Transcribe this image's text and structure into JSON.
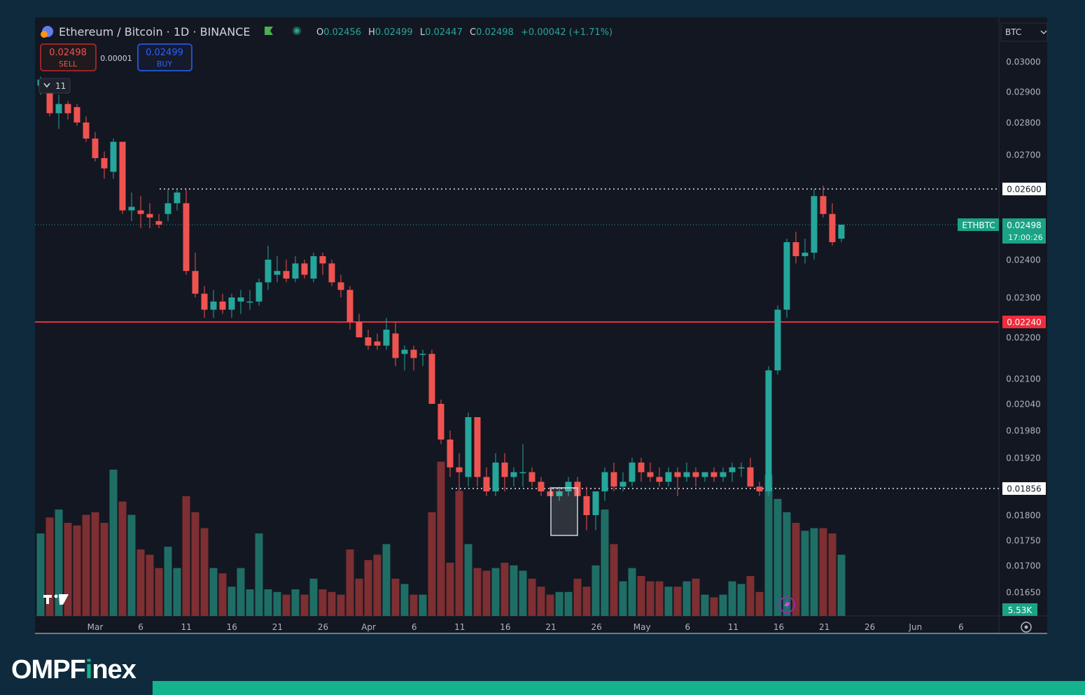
{
  "header": {
    "symbol_title": "Ethereum / Bitcoin · 1D · BINANCE",
    "ohlc": [
      {
        "k": "O",
        "v": "0.02456"
      },
      {
        "k": "H",
        "v": "0.02499"
      },
      {
        "k": "L",
        "v": "0.02447"
      },
      {
        "k": "C",
        "v": "0.02498"
      }
    ],
    "change": "+0.00042 (+1.71%)"
  },
  "trade": {
    "sell_price": "0.02498",
    "sell_label": "SELL",
    "spread": "0.00001",
    "buy_price": "0.02499",
    "buy_label": "BUY"
  },
  "indicators_toggle": "11",
  "currency_select": "BTC",
  "brand": {
    "name_a": "OMPF",
    "name_b": "i",
    "name_c": "nex"
  },
  "colors": {
    "up": "#26a69a",
    "down": "#ef5350",
    "up_vol": "#1f6e66",
    "down_vol": "#7d2f32",
    "bg": "#131722",
    "accent": "#14b38e"
  },
  "chart_data": {
    "type": "candlestick",
    "symbol": "ETHBTC",
    "last_price_label": "0.02498",
    "countdown": "17:00:26",
    "volume_label": "5.53K",
    "price_axis_ticks": [
      "0.03000",
      "0.02900",
      "0.02800",
      "0.02700",
      "0.02400",
      "0.02300",
      "0.02200",
      "0.02100",
      "0.02040",
      "0.01980",
      "0.01920",
      "0.01800",
      "0.01750",
      "0.01700",
      "0.01650"
    ],
    "x_axis_ticks": [
      "Mar",
      "6",
      "11",
      "16",
      "21",
      "26",
      "Apr",
      "6",
      "11",
      "16",
      "21",
      "26",
      "May",
      "6",
      "11",
      "16",
      "21",
      "26",
      "Jun",
      "6"
    ],
    "levels": [
      {
        "price": 0.026,
        "label": "0.02600",
        "style": "dotted-white"
      },
      {
        "price": 0.0224,
        "label": "0.02240",
        "style": "solid-red"
      },
      {
        "price": 0.01856,
        "label": "0.01856",
        "style": "dotted-white"
      }
    ],
    "candles": [
      [
        0.0292,
        0.0295,
        0.0289,
        0.0294
      ],
      [
        0.0294,
        0.0294,
        0.0282,
        0.0283
      ],
      [
        0.0283,
        0.0289,
        0.0278,
        0.0286
      ],
      [
        0.0286,
        0.0287,
        0.0281,
        0.0283
      ],
      [
        0.0285,
        0.0286,
        0.0279,
        0.028
      ],
      [
        0.028,
        0.0282,
        0.0274,
        0.0275
      ],
      [
        0.0275,
        0.0277,
        0.0268,
        0.0269
      ],
      [
        0.0269,
        0.0271,
        0.0263,
        0.0266
      ],
      [
        0.0265,
        0.0275,
        0.0263,
        0.0274
      ],
      [
        0.0274,
        0.0274,
        0.0253,
        0.0254
      ],
      [
        0.0254,
        0.0259,
        0.0251,
        0.0255
      ],
      [
        0.0254,
        0.0258,
        0.0249,
        0.0253
      ],
      [
        0.0253,
        0.0256,
        0.0249,
        0.0252
      ],
      [
        0.0251,
        0.0253,
        0.0249,
        0.025
      ],
      [
        0.0253,
        0.026,
        0.0251,
        0.0256
      ],
      [
        0.0256,
        0.026,
        0.0254,
        0.0259
      ],
      [
        0.0256,
        0.026,
        0.0236,
        0.0237
      ],
      [
        0.0237,
        0.0242,
        0.023,
        0.0231
      ],
      [
        0.0231,
        0.0233,
        0.0225,
        0.0227
      ],
      [
        0.0227,
        0.0232,
        0.0225,
        0.0229
      ],
      [
        0.0229,
        0.0231,
        0.0226,
        0.0227
      ],
      [
        0.0227,
        0.0231,
        0.0225,
        0.023
      ],
      [
        0.0229,
        0.0232,
        0.0226,
        0.023
      ],
      [
        0.0229,
        0.0232,
        0.0227,
        0.0229
      ],
      [
        0.0229,
        0.0235,
        0.0228,
        0.0234
      ],
      [
        0.0234,
        0.0244,
        0.0232,
        0.024
      ],
      [
        0.0236,
        0.0241,
        0.0234,
        0.0237
      ],
      [
        0.0237,
        0.024,
        0.0234,
        0.0235
      ],
      [
        0.0235,
        0.0241,
        0.0234,
        0.0239
      ],
      [
        0.0239,
        0.024,
        0.0235,
        0.0236
      ],
      [
        0.0235,
        0.0242,
        0.0234,
        0.0241
      ],
      [
        0.0241,
        0.0242,
        0.0236,
        0.0239
      ],
      [
        0.0239,
        0.024,
        0.0233,
        0.0234
      ],
      [
        0.0234,
        0.0236,
        0.023,
        0.0232
      ],
      [
        0.0232,
        0.0233,
        0.0222,
        0.0224
      ],
      [
        0.0224,
        0.0226,
        0.022,
        0.022
      ],
      [
        0.022,
        0.0222,
        0.0217,
        0.0218
      ],
      [
        0.0219,
        0.0221,
        0.0217,
        0.0218
      ],
      [
        0.0218,
        0.0225,
        0.0217,
        0.0222
      ],
      [
        0.0221,
        0.0224,
        0.0213,
        0.0215
      ],
      [
        0.0216,
        0.0218,
        0.0212,
        0.0217
      ],
      [
        0.0217,
        0.0218,
        0.0212,
        0.0215
      ],
      [
        0.0216,
        0.0217,
        0.0213,
        0.0216
      ],
      [
        0.0216,
        0.0217,
        0.0204,
        0.0204
      ],
      [
        0.0204,
        0.0205,
        0.0195,
        0.0196
      ],
      [
        0.0196,
        0.0198,
        0.0188,
        0.019
      ],
      [
        0.019,
        0.0193,
        0.0185,
        0.0189
      ],
      [
        0.0188,
        0.0202,
        0.0186,
        0.0201
      ],
      [
        0.0201,
        0.0201,
        0.0186,
        0.0188
      ],
      [
        0.0188,
        0.019,
        0.0184,
        0.0185
      ],
      [
        0.0185,
        0.0193,
        0.0184,
        0.0191
      ],
      [
        0.0191,
        0.0193,
        0.0185,
        0.0188
      ],
      [
        0.0188,
        0.019,
        0.0186,
        0.0189
      ],
      [
        0.0189,
        0.0195,
        0.0186,
        0.0189
      ],
      [
        0.0189,
        0.019,
        0.0186,
        0.0187
      ],
      [
        0.0187,
        0.0188,
        0.0184,
        0.0185
      ],
      [
        0.0185,
        0.0186,
        0.0184,
        0.0184
      ],
      [
        0.0184,
        0.0186,
        0.0183,
        0.0185
      ],
      [
        0.0185,
        0.0188,
        0.0184,
        0.0187
      ],
      [
        0.0187,
        0.0188,
        0.0184,
        0.0184
      ],
      [
        0.0184,
        0.0186,
        0.0177,
        0.018
      ],
      [
        0.018,
        0.0185,
        0.0177,
        0.0185
      ],
      [
        0.0185,
        0.019,
        0.0183,
        0.0189
      ],
      [
        0.0189,
        0.0191,
        0.0185,
        0.0186
      ],
      [
        0.0186,
        0.0189,
        0.0185,
        0.0187
      ],
      [
        0.0187,
        0.0192,
        0.0186,
        0.0191
      ],
      [
        0.0191,
        0.0192,
        0.0187,
        0.0189
      ],
      [
        0.0189,
        0.0191,
        0.0187,
        0.0188
      ],
      [
        0.0188,
        0.019,
        0.0186,
        0.0187
      ],
      [
        0.0187,
        0.019,
        0.0186,
        0.0189
      ],
      [
        0.0189,
        0.019,
        0.0184,
        0.0188
      ],
      [
        0.0188,
        0.0191,
        0.0187,
        0.0189
      ],
      [
        0.0189,
        0.019,
        0.0186,
        0.0188
      ],
      [
        0.0188,
        0.0189,
        0.0187,
        0.0189
      ],
      [
        0.0189,
        0.019,
        0.0187,
        0.0188
      ],
      [
        0.0188,
        0.019,
        0.0187,
        0.0189
      ],
      [
        0.0189,
        0.0191,
        0.0187,
        0.019
      ],
      [
        0.019,
        0.0191,
        0.0188,
        0.019
      ],
      [
        0.019,
        0.0192,
        0.0186,
        0.0186
      ],
      [
        0.0186,
        0.0187,
        0.0184,
        0.0185
      ],
      [
        0.0185,
        0.0213,
        0.0184,
        0.0212
      ],
      [
        0.0212,
        0.0228,
        0.0211,
        0.0227
      ],
      [
        0.0227,
        0.0246,
        0.0225,
        0.0245
      ],
      [
        0.0245,
        0.0248,
        0.0239,
        0.0241
      ],
      [
        0.0241,
        0.0246,
        0.0239,
        0.0242
      ],
      [
        0.0242,
        0.026,
        0.024,
        0.0258
      ],
      [
        0.0258,
        0.0261,
        0.0252,
        0.0253
      ],
      [
        0.0253,
        0.0256,
        0.0244,
        0.0245
      ],
      [
        0.0246,
        0.025,
        0.0245,
        0.025
      ]
    ],
    "volumes": [
      3.1,
      3.7,
      4.0,
      3.5,
      3.4,
      3.8,
      3.9,
      3.5,
      5.5,
      4.3,
      3.8,
      2.5,
      2.3,
      1.8,
      2.6,
      1.8,
      4.5,
      3.9,
      3.3,
      1.8,
      1.6,
      1.1,
      1.8,
      1.0,
      3.1,
      1.0,
      0.9,
      0.8,
      1.0,
      0.8,
      1.4,
      1.0,
      0.9,
      0.8,
      2.5,
      1.4,
      2.1,
      2.3,
      2.7,
      1.4,
      1.2,
      0.8,
      0.8,
      3.9,
      5.8,
      2.0,
      4.7,
      2.7,
      1.8,
      1.7,
      1.8,
      2.0,
      1.9,
      1.7,
      1.4,
      1.1,
      0.8,
      0.9,
      0.9,
      1.4,
      1.1,
      1.9,
      4.0,
      2.7,
      1.3,
      1.8,
      1.5,
      1.3,
      1.3,
      1.1,
      1.1,
      1.3,
      1.4,
      0.8,
      0.7,
      0.8,
      1.3,
      1.2,
      1.5,
      0.9,
      5.3,
      4.4,
      3.9,
      3.5,
      3.2,
      3.3,
      3.3,
      3.1,
      2.3
    ]
  }
}
